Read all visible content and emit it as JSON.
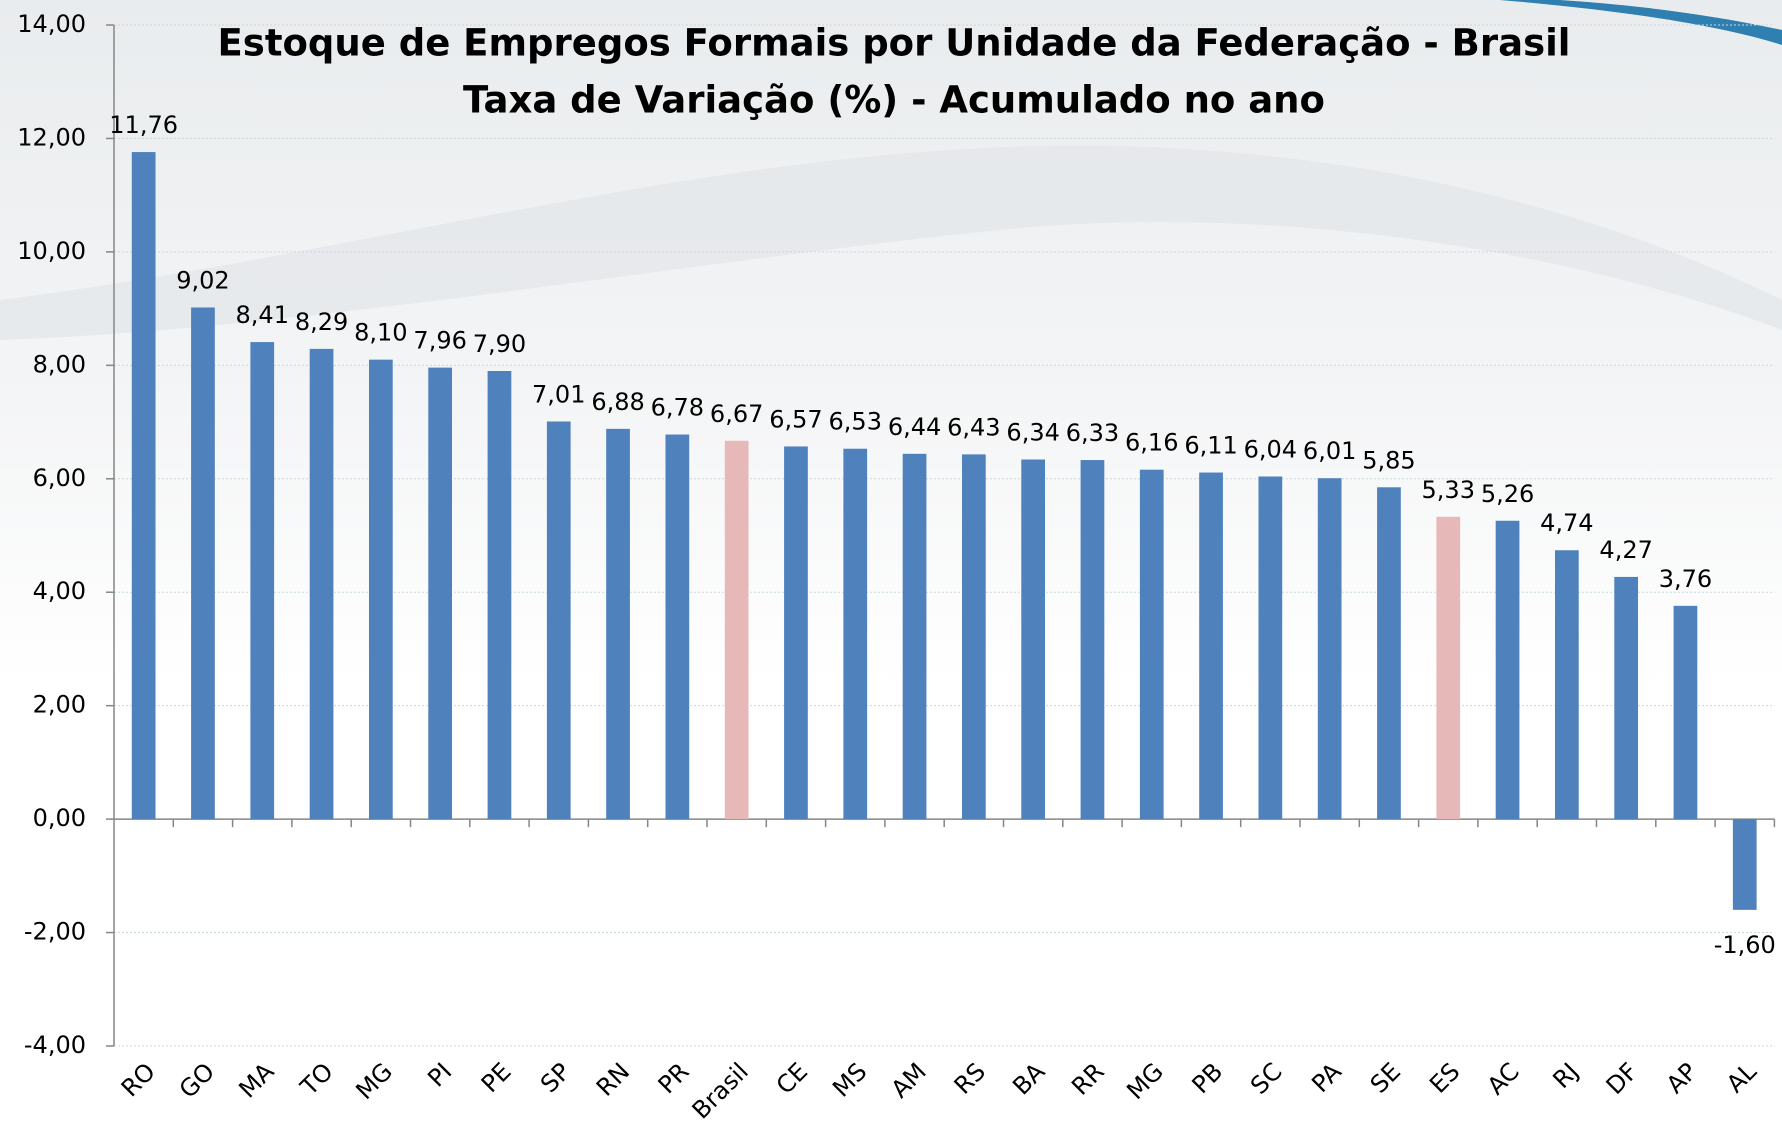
{
  "chart_data": {
    "type": "bar",
    "title": "Estoque de Empregos Formais por Unidade da Federação - Brasil",
    "subtitle": "Taxa de Variação (%) - Acumulado no ano",
    "categories": [
      "RO",
      "GO",
      "MA",
      "TO",
      "MG",
      "PI",
      "PE",
      "SP",
      "RN",
      "PR",
      "Brasil",
      "CE",
      "MS",
      "AM",
      "RS",
      "BA",
      "RR",
      "MG",
      "PB",
      "SC",
      "PA",
      "SE",
      "ES",
      "AC",
      "RJ",
      "DF",
      "AP",
      "AL"
    ],
    "values": [
      11.76,
      9.02,
      8.41,
      8.29,
      8.1,
      7.96,
      7.9,
      7.01,
      6.88,
      6.78,
      6.67,
      6.57,
      6.53,
      6.44,
      6.43,
      6.34,
      6.33,
      6.16,
      6.11,
      6.04,
      6.01,
      5.85,
      5.33,
      5.26,
      4.74,
      4.27,
      3.76,
      -1.6
    ],
    "value_labels": [
      "11,76",
      "9,02",
      "8,41",
      "8,29",
      "8,10",
      "7,96",
      "7,90",
      "7,01",
      "6,88",
      "6,78",
      "6,67",
      "6,57",
      "6,53",
      "6,44",
      "6,43",
      "6,34",
      "6,33",
      "6,16",
      "6,11",
      "6,04",
      "6,01",
      "5,85",
      "5,33",
      "5,26",
      "4,74",
      "4,27",
      "3,76",
      "-1,60"
    ],
    "colors": [
      "#4f81bd",
      "#4f81bd",
      "#4f81bd",
      "#4f81bd",
      "#4f81bd",
      "#4f81bd",
      "#4f81bd",
      "#4f81bd",
      "#4f81bd",
      "#4f81bd",
      "#e6b8b7",
      "#4f81bd",
      "#4f81bd",
      "#4f81bd",
      "#4f81bd",
      "#4f81bd",
      "#4f81bd",
      "#4f81bd",
      "#4f81bd",
      "#4f81bd",
      "#4f81bd",
      "#4f81bd",
      "#e6b8b7",
      "#4f81bd",
      "#4f81bd",
      "#4f81bd",
      "#4f81bd",
      "#4f81bd"
    ],
    "ylim": [
      -4,
      14
    ],
    "yticks": [
      {
        "value": -4,
        "label": "-4,00"
      },
      {
        "value": -2,
        "label": "-2,00"
      },
      {
        "value": 0,
        "label": "0,00"
      },
      {
        "value": 2,
        "label": "2,00"
      },
      {
        "value": 4,
        "label": "4,00"
      },
      {
        "value": 6,
        "label": "6,00"
      },
      {
        "value": 8,
        "label": "8,00"
      },
      {
        "value": 10,
        "label": "10,00"
      },
      {
        "value": 12,
        "label": "12,00"
      },
      {
        "value": 14,
        "label": "14,00"
      }
    ],
    "grid": true
  }
}
